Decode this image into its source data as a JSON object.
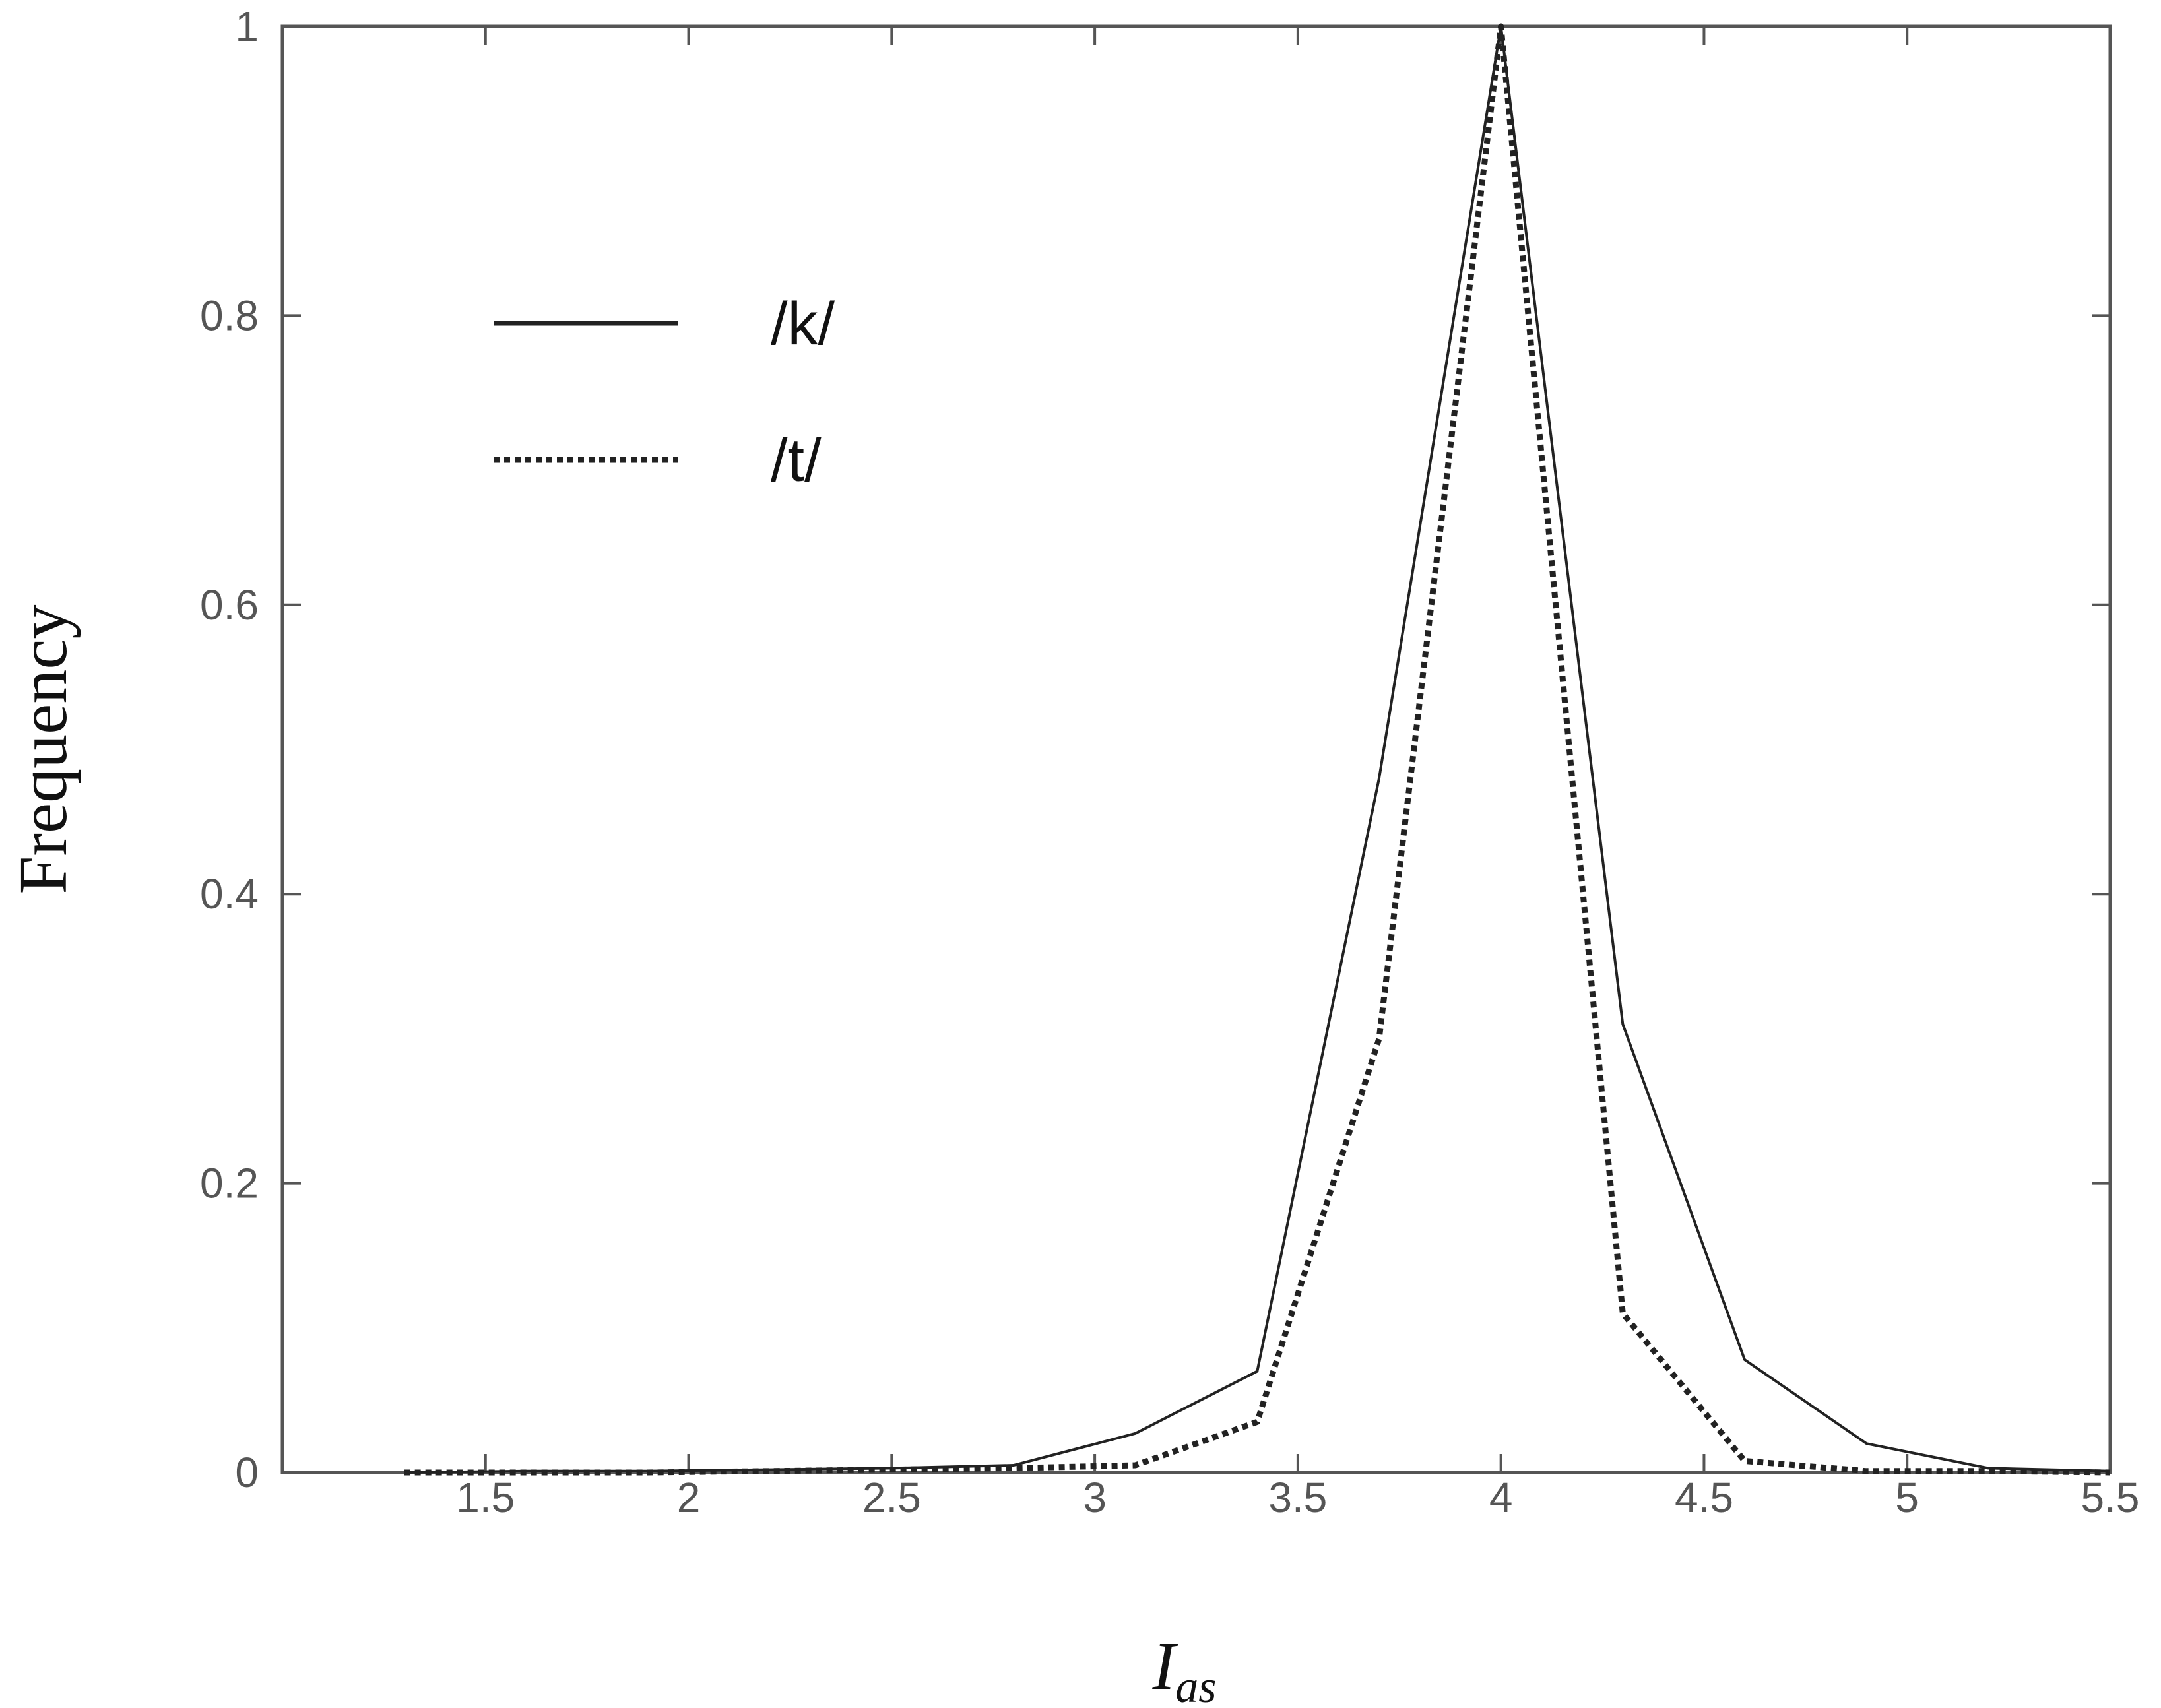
{
  "chart_data": {
    "type": "line",
    "xlabel": {
      "main": "I",
      "sub": "as"
    },
    "ylabel": "Frequency",
    "xlim": [
      1.0,
      5.5
    ],
    "ylim": [
      0,
      1
    ],
    "xticks": [
      1.5,
      2,
      2.5,
      3,
      3.5,
      4,
      4.5,
      5,
      5.5
    ],
    "xtick_labels": [
      "1.5",
      "2",
      "2.5",
      "3",
      "3.5",
      "4",
      "4.5",
      "5",
      "5.5"
    ],
    "yticks": [
      0,
      0.2,
      0.4,
      0.6,
      0.8,
      1
    ],
    "ytick_labels": [
      "0",
      "0.2",
      "0.4",
      "0.6",
      "0.8",
      "1"
    ],
    "grid": false,
    "legend_position": "top-left",
    "series": [
      {
        "name": "/k/",
        "style": "solid",
        "color": "#222222",
        "x": [
          1.3,
          1.6,
          1.9,
          2.2,
          2.5,
          2.8,
          3.1,
          3.4,
          3.7,
          4.0,
          4.3,
          4.6,
          4.9,
          5.2,
          5.5
        ],
        "y": [
          0.0,
          0.001,
          0.001,
          0.002,
          0.003,
          0.005,
          0.027,
          0.07,
          0.48,
          1.0,
          0.31,
          0.078,
          0.02,
          0.003,
          0.001
        ]
      },
      {
        "name": "/t/",
        "style": "dotted",
        "color": "#222222",
        "x": [
          1.3,
          1.6,
          1.9,
          2.2,
          2.5,
          2.8,
          3.1,
          3.4,
          3.7,
          4.0,
          4.3,
          4.6,
          4.9,
          5.2,
          5.5
        ],
        "y": [
          0.0,
          0.0,
          0.0,
          0.001,
          0.002,
          0.003,
          0.005,
          0.035,
          0.3,
          1.0,
          0.11,
          0.008,
          0.001,
          0.001,
          0.0
        ]
      }
    ]
  }
}
